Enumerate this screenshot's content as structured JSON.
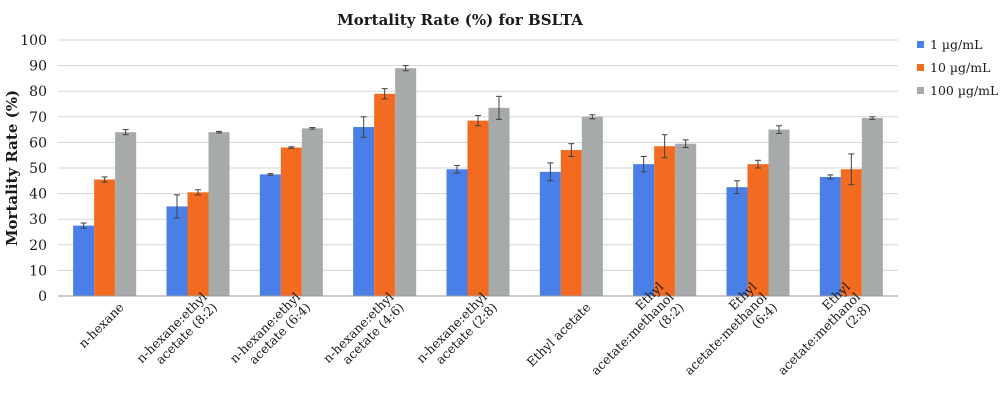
{
  "chart_data": {
    "type": "bar",
    "title": "Mortality Rate (%) for BSLTA",
    "xlabel": "",
    "ylabel": "Mortality Rate (%)",
    "ylim": [
      0,
      100
    ],
    "yticks": [
      0,
      10,
      20,
      30,
      40,
      50,
      60,
      70,
      80,
      90,
      100
    ],
    "grid": true,
    "legend_position": "right",
    "categories": [
      [
        "n-hexane"
      ],
      [
        "n-hexane:ethyl",
        "acetate (8:2)"
      ],
      [
        "n-hexane:ethyl",
        "acetate (6:4)"
      ],
      [
        "n-hexane:ethyl",
        "acetate (4:6)"
      ],
      [
        "n-hexane:ethyl",
        "acetate (2:8)"
      ],
      [
        "Ethyl acetate"
      ],
      [
        "Ethyl",
        "acetate:methanol",
        "(8:2)"
      ],
      [
        "Ethyl",
        "acetate:methanol",
        "(6:4)"
      ],
      [
        "Ethyl",
        "acetate:methanol",
        "(2:8)"
      ]
    ],
    "series": [
      {
        "name": "1 µg/mL",
        "color": "#4a7fe8",
        "values": [
          27.5,
          35,
          47.5,
          66,
          49.5,
          48.5,
          51.5,
          42.5,
          46.5
        ],
        "errors": [
          1,
          4.5,
          0.3,
          4,
          1.5,
          3.5,
          3,
          2.5,
          0.8
        ]
      },
      {
        "name": "10 µg/mL",
        "color": "#f26b21",
        "values": [
          45.5,
          40.5,
          58,
          79,
          68.5,
          57,
          58.5,
          51.5,
          49.5
        ],
        "errors": [
          1,
          1,
          0.3,
          2,
          2,
          2.5,
          4.5,
          1.5,
          6
        ]
      },
      {
        "name": "100 µg/mL",
        "color": "#a6aaa9",
        "values": [
          64,
          64,
          65.5,
          89,
          73.5,
          70,
          59.5,
          65,
          69.5
        ],
        "errors": [
          1,
          0.3,
          0.3,
          1,
          4.5,
          0.8,
          1.5,
          1.5,
          0.5
        ]
      }
    ]
  }
}
